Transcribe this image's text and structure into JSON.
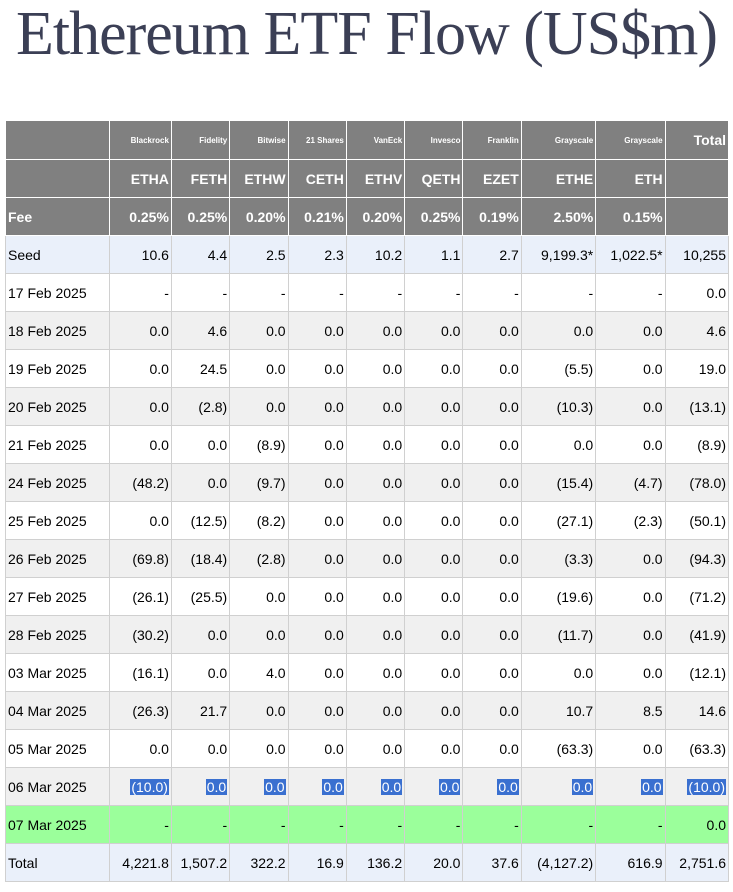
{
  "title": "Ethereum ETF Flow (US$m)",
  "issuers": [
    "Blackrock",
    "Fidelity",
    "Bitwise",
    "21 Shares",
    "VanEck",
    "Invesco",
    "Franklin",
    "Grayscale",
    "Grayscale"
  ],
  "total_label": "Total",
  "tickers": [
    "ETHA",
    "FETH",
    "ETHW",
    "CETH",
    "ETHV",
    "QETH",
    "EZET",
    "ETHE",
    "ETH"
  ],
  "fee_label": "Fee",
  "fees": [
    "0.25%",
    "0.25%",
    "0.20%",
    "0.21%",
    "0.20%",
    "0.25%",
    "0.19%",
    "2.50%",
    "0.15%"
  ],
  "rows": [
    {
      "label": "Seed",
      "values": [
        "10.6",
        "4.4",
        "2.5",
        "2.3",
        "10.2",
        "1.1",
        "2.7",
        "9,199.3*",
        "1,022.5*"
      ],
      "total": "10,255"
    },
    {
      "label": "17 Feb 2025",
      "values": [
        "-",
        "-",
        "-",
        "-",
        "-",
        "-",
        "-",
        "-",
        "-"
      ],
      "total": "0.0"
    },
    {
      "label": "18 Feb 2025",
      "values": [
        "0.0",
        "4.6",
        "0.0",
        "0.0",
        "0.0",
        "0.0",
        "0.0",
        "0.0",
        "0.0"
      ],
      "total": "4.6"
    },
    {
      "label": "19 Feb 2025",
      "values": [
        "0.0",
        "24.5",
        "0.0",
        "0.0",
        "0.0",
        "0.0",
        "0.0",
        "(5.5)",
        "0.0"
      ],
      "total": "19.0"
    },
    {
      "label": "20 Feb 2025",
      "values": [
        "0.0",
        "(2.8)",
        "0.0",
        "0.0",
        "0.0",
        "0.0",
        "0.0",
        "(10.3)",
        "0.0"
      ],
      "total": "(13.1)"
    },
    {
      "label": "21 Feb 2025",
      "values": [
        "0.0",
        "0.0",
        "(8.9)",
        "0.0",
        "0.0",
        "0.0",
        "0.0",
        "0.0",
        "0.0"
      ],
      "total": "(8.9)"
    },
    {
      "label": "24 Feb 2025",
      "values": [
        "(48.2)",
        "0.0",
        "(9.7)",
        "0.0",
        "0.0",
        "0.0",
        "0.0",
        "(15.4)",
        "(4.7)"
      ],
      "total": "(78.0)"
    },
    {
      "label": "25 Feb 2025",
      "values": [
        "0.0",
        "(12.5)",
        "(8.2)",
        "0.0",
        "0.0",
        "0.0",
        "0.0",
        "(27.1)",
        "(2.3)"
      ],
      "total": "(50.1)"
    },
    {
      "label": "26 Feb 2025",
      "values": [
        "(69.8)",
        "(18.4)",
        "(2.8)",
        "0.0",
        "0.0",
        "0.0",
        "0.0",
        "(3.3)",
        "0.0"
      ],
      "total": "(94.3)"
    },
    {
      "label": "27 Feb 2025",
      "values": [
        "(26.1)",
        "(25.5)",
        "0.0",
        "0.0",
        "0.0",
        "0.0",
        "0.0",
        "(19.6)",
        "0.0"
      ],
      "total": "(71.2)"
    },
    {
      "label": "28 Feb 2025",
      "values": [
        "(30.2)",
        "0.0",
        "0.0",
        "0.0",
        "0.0",
        "0.0",
        "0.0",
        "(11.7)",
        "0.0"
      ],
      "total": "(41.9)"
    },
    {
      "label": "03 Mar 2025",
      "values": [
        "(16.1)",
        "0.0",
        "4.0",
        "0.0",
        "0.0",
        "0.0",
        "0.0",
        "0.0",
        "0.0"
      ],
      "total": "(12.1)"
    },
    {
      "label": "04 Mar 2025",
      "values": [
        "(26.3)",
        "21.7",
        "0.0",
        "0.0",
        "0.0",
        "0.0",
        "0.0",
        "10.7",
        "8.5"
      ],
      "total": "14.6"
    },
    {
      "label": "05 Mar 2025",
      "values": [
        "0.0",
        "0.0",
        "0.0",
        "0.0",
        "0.0",
        "0.0",
        "0.0",
        "(63.3)",
        "0.0"
      ],
      "total": "(63.3)"
    },
    {
      "label": "06 Mar 2025",
      "values": [
        "(10.0)",
        "0.0",
        "0.0",
        "0.0",
        "0.0",
        "0.0",
        "0.0",
        "0.0",
        "0.0"
      ],
      "total": "(10.0)",
      "selected": true
    },
    {
      "label": "07 Mar 2025",
      "values": [
        "-",
        "-",
        "-",
        "-",
        "-",
        "-",
        "-",
        "-",
        "-"
      ],
      "total": "0.0",
      "highlight": true
    }
  ],
  "totals_row": {
    "label": "Total",
    "values": [
      "4,221.8",
      "1,507.2",
      "322.2",
      "16.9",
      "136.2",
      "20.0",
      "37.6",
      "(4,127.2)",
      "616.9"
    ],
    "total": "2,751.6"
  },
  "colors": {
    "header_bg": "#808080",
    "negative": "#d00000",
    "highlight_row": "#9bff9b",
    "selection": "#3a70d0",
    "alt_row": "#f0f0f0",
    "seed_total_row": "#eaf0fa"
  }
}
